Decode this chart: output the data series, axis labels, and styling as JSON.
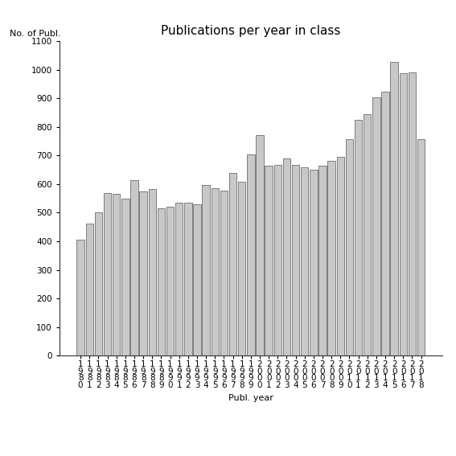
{
  "title": "Publications per year in class",
  "xlabel": "Publ. year",
  "ylabel": "No. of Publ.",
  "years": [
    "1980",
    "1981",
    "1982",
    "1983",
    "1984",
    "1985",
    "1986",
    "1987",
    "1988",
    "1989",
    "1990",
    "1991",
    "1992",
    "1993",
    "1994",
    "1995",
    "1996",
    "1997",
    "1998",
    "1999",
    "2000",
    "2001",
    "2002",
    "2003",
    "2004",
    "2005",
    "2006",
    "2007",
    "2008",
    "2009",
    "2010",
    "2011",
    "2012",
    "2013",
    "2014",
    "2015",
    "2016",
    "2017",
    "2018"
  ],
  "values": [
    405,
    462,
    500,
    570,
    565,
    548,
    615,
    575,
    582,
    516,
    520,
    535,
    535,
    530,
    597,
    586,
    578,
    638,
    607,
    703,
    770,
    663,
    668,
    690,
    668,
    660,
    650,
    665,
    680,
    695,
    758,
    825,
    845,
    903,
    923,
    1028,
    988,
    990,
    757
  ],
  "bar_color": "#c8c8c8",
  "bar_edge_color": "#555555",
  "ylim": [
    0,
    1100
  ],
  "yticks": [
    0,
    100,
    200,
    300,
    400,
    500,
    600,
    700,
    800,
    900,
    1000,
    1100
  ],
  "bg_color": "#ffffff",
  "title_fontsize": 11,
  "label_fontsize": 8,
  "tick_fontsize": 7.5
}
